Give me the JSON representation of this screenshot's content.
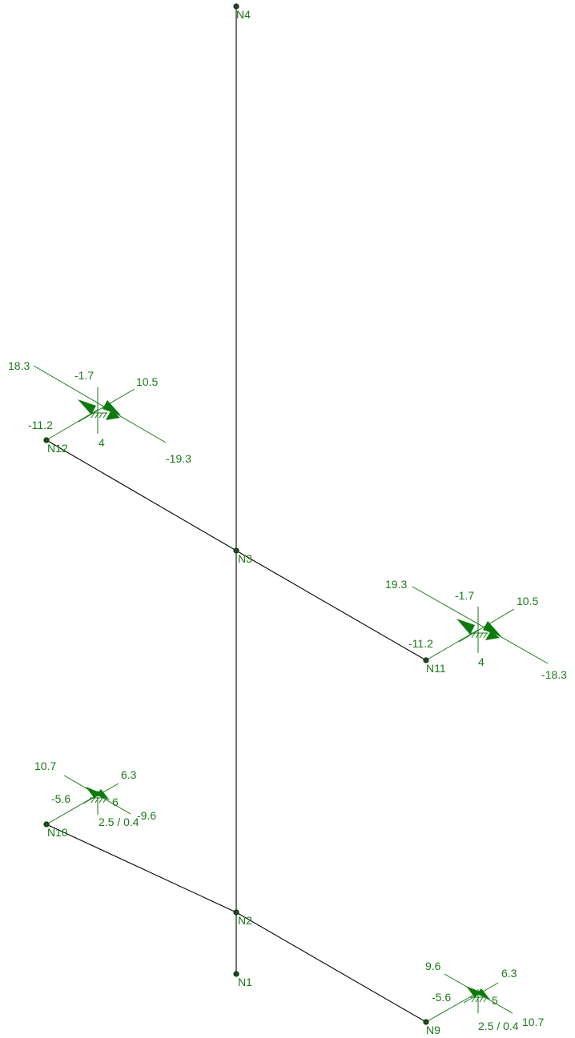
{
  "nodes": [
    {
      "id": "N4",
      "label": "N4"
    },
    {
      "id": "N3",
      "label": "N3"
    },
    {
      "id": "N2",
      "label": "N2"
    },
    {
      "id": "N1",
      "label": "N1"
    },
    {
      "id": "N12",
      "label": "N12"
    },
    {
      "id": "N11",
      "label": "N11"
    },
    {
      "id": "N10",
      "label": "N10"
    },
    {
      "id": "N9",
      "label": "N9"
    }
  ],
  "members": [
    {
      "from": "N1",
      "to": "N4"
    },
    {
      "from": "N12",
      "to": "N3"
    },
    {
      "from": "N3",
      "to": "N11"
    },
    {
      "from": "N10",
      "to": "N2"
    },
    {
      "from": "N2",
      "to": "N9"
    }
  ],
  "supports": [
    {
      "id": "support-N12",
      "attached_node": "N12",
      "reactions": {
        "upper_left": "18.3",
        "top": "-1.7",
        "upper_right": "10.5",
        "left": "-11.2",
        "bottom": "4",
        "lower_right": "-19.3"
      }
    },
    {
      "id": "support-N11",
      "attached_node": "N11",
      "reactions": {
        "upper_left": "19.3",
        "top": "-1.7",
        "upper_right": "10.5",
        "left": "-11.2",
        "bottom": "4",
        "lower_right": "-18.3"
      }
    },
    {
      "id": "support-N10",
      "attached_node": "N10",
      "reactions": {
        "upper_left": "10.7",
        "upper_right": "6.3",
        "left": "-5.6",
        "center": "6",
        "bottom": "2.5 / 0.4",
        "lower_right": "-9.6"
      }
    },
    {
      "id": "support-N9",
      "attached_node": "N9",
      "reactions": {
        "upper_left": "9.6",
        "upper_right": "6.3",
        "left": "-5.6",
        "center": "5",
        "bottom": "2.5 / 0.4",
        "lower_right": "10.7"
      }
    }
  ],
  "colors": {
    "member": "#000000",
    "node": "#1f4a1f",
    "label": "#1a7a1a",
    "arrow": "#0e7a0e"
  }
}
